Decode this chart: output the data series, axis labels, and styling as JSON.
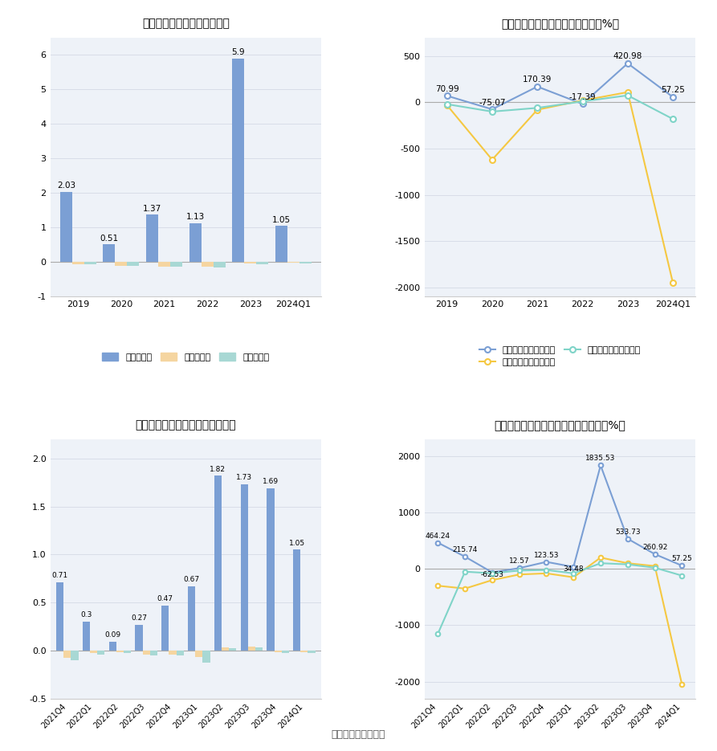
{
  "chart1": {
    "title": "历年营收、净利情况（亿元）",
    "categories": [
      "2019",
      "2020",
      "2021",
      "2022",
      "2023",
      "2024Q1"
    ],
    "revenue": [
      2.03,
      0.51,
      1.37,
      1.13,
      5.9,
      1.05
    ],
    "net_profit": [
      -0.05,
      -0.1,
      -0.12,
      -0.13,
      -0.04,
      -0.02
    ],
    "deducted_profit": [
      -0.07,
      -0.11,
      -0.14,
      -0.15,
      -0.05,
      -0.03
    ],
    "ylim": [
      -1,
      6.5
    ],
    "yticks": [
      -1,
      0,
      1,
      2,
      3,
      4,
      5,
      6
    ]
  },
  "chart2": {
    "title": "历年营收、净利同比增长率情况（%）",
    "categories": [
      "2019",
      "2020",
      "2021",
      "2022",
      "2023",
      "2024Q1"
    ],
    "revenue_growth": [
      70.99,
      -75.07,
      170.39,
      -17.39,
      420.98,
      57.25
    ],
    "profit_growth": [
      -30,
      -620,
      -80,
      20,
      110,
      -1950
    ],
    "deducted_growth": [
      -20,
      -100,
      -60,
      10,
      75,
      -180
    ],
    "ylim": [
      -2100,
      700
    ],
    "yticks": [
      -2000,
      -1500,
      -1000,
      -500,
      0,
      500
    ]
  },
  "chart3": {
    "title": "营收、净利季度变动情况（亿元）",
    "categories": [
      "2021Q4",
      "2022Q1",
      "2022Q2",
      "2022Q3",
      "2022Q4",
      "2023Q1",
      "2023Q2",
      "2023Q3",
      "2023Q4",
      "2024Q1"
    ],
    "revenue": [
      0.71,
      0.3,
      0.09,
      0.27,
      0.47,
      0.67,
      1.82,
      1.73,
      1.69,
      1.05
    ],
    "net_profit": [
      -0.08,
      -0.03,
      -0.02,
      -0.04,
      -0.04,
      -0.07,
      0.03,
      0.04,
      -0.02,
      -0.02
    ],
    "deducted_profit": [
      -0.1,
      -0.04,
      -0.03,
      -0.05,
      -0.05,
      -0.13,
      0.02,
      0.03,
      -0.03,
      -0.03
    ],
    "ylim": [
      -0.5,
      2.2
    ],
    "yticks": [
      -0.5,
      0,
      0.5,
      1.0,
      1.5,
      2.0
    ]
  },
  "chart4": {
    "title": "营收、净利同比增长率季度变动情况（%）",
    "categories": [
      "2021Q4",
      "2022Q1",
      "2022Q2",
      "2022Q3",
      "2022Q4",
      "2023Q1",
      "2023Q2",
      "2023Q3",
      "2023Q4",
      "2024Q1"
    ],
    "revenue_growth": [
      464.24,
      215.74,
      -62.53,
      12.57,
      123.53,
      34.48,
      1835.53,
      533.73,
      260.92,
      57.25
    ],
    "profit_growth": [
      -300,
      -350,
      -200,
      -100,
      -80,
      -150,
      200,
      100,
      50,
      -2050
    ],
    "deducted_growth": [
      -1150,
      -50,
      -80,
      -30,
      -20,
      -80,
      100,
      80,
      20,
      -120
    ],
    "ylim": [
      -2300,
      2300
    ],
    "yticks": [
      -2000,
      -1000,
      0,
      1000,
      2000
    ]
  },
  "legend_revenue": "营业总收入",
  "legend_profit": "归母净利润",
  "legend_deducted": "扣非净利润",
  "legend_revenue_growth": "营业总收入同比增长率",
  "legend_profit_growth": "归母净利润同比增长率",
  "legend_deducted_growth": "扣非净利润同比增长率",
  "source_text": "数据来源：恒生聚源",
  "bg_color": "#ffffff",
  "plot_bg_color": "#eef2f8",
  "grid_color": "#d8dde8",
  "bar_color": "#7b9fd4",
  "profit_bar_color": "#f5d5a0",
  "deducted_bar_color": "#a8d8d4",
  "revenue_line_color": "#7b9fd4",
  "profit_line_color": "#f5c842",
  "deducted_line_color": "#7fd4c8"
}
